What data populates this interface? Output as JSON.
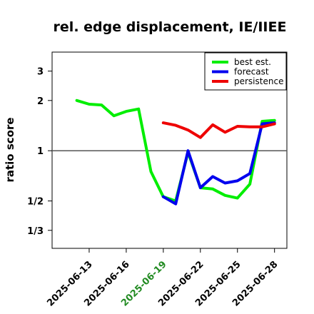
{
  "chart_data": {
    "type": "line",
    "title": "rel. edge displacement, IE/IIEE",
    "xlabel": "",
    "ylabel": "ratio score",
    "y_scale": "log",
    "y_ticks": [
      {
        "value": 3,
        "label": "3"
      },
      {
        "value": 2,
        "label": "2"
      },
      {
        "value": 1,
        "label": "1"
      },
      {
        "value": 0.5,
        "label": "1/2"
      },
      {
        "value": 0.3333,
        "label": "1/3"
      }
    ],
    "x_ticks": [
      {
        "date": "2025-06-13",
        "label": "2025-06-13",
        "color": "#000000"
      },
      {
        "date": "2025-06-16",
        "label": "2025-06-16",
        "color": "#000000"
      },
      {
        "date": "2025-06-19",
        "label": "2025-06-19",
        "color": "#228B22"
      },
      {
        "date": "2025-06-22",
        "label": "2025-06-22",
        "color": "#000000"
      },
      {
        "date": "2025-06-25",
        "label": "2025-06-25",
        "color": "#000000"
      },
      {
        "date": "2025-06-28",
        "label": "2025-06-28",
        "color": "#000000"
      }
    ],
    "xlim": [
      "2025-06-10",
      "2025-06-29"
    ],
    "ylim": [
      0.26,
      3.9
    ],
    "reference_line": 1,
    "legend_position": "top-right",
    "series": [
      {
        "name": "best est.",
        "color": "#00ee00",
        "points": [
          [
            "2025-06-12",
            2.0
          ],
          [
            "2025-06-13",
            1.9
          ],
          [
            "2025-06-14",
            1.88
          ],
          [
            "2025-06-15",
            1.62
          ],
          [
            "2025-06-16",
            1.72
          ],
          [
            "2025-06-17",
            1.78
          ],
          [
            "2025-06-18",
            0.75
          ],
          [
            "2025-06-19",
            0.53
          ],
          [
            "2025-06-20",
            0.5
          ],
          [
            "2025-06-21",
            0.98
          ],
          [
            "2025-06-22",
            0.6
          ],
          [
            "2025-06-23",
            0.59
          ],
          [
            "2025-06-24",
            0.54
          ],
          [
            "2025-06-25",
            0.52
          ],
          [
            "2025-06-26",
            0.63
          ],
          [
            "2025-06-27",
            1.5
          ],
          [
            "2025-06-28",
            1.52
          ]
        ]
      },
      {
        "name": "forecast",
        "color": "#0000ee",
        "points": [
          [
            "2025-06-19",
            0.53
          ],
          [
            "2025-06-20",
            0.48
          ],
          [
            "2025-06-21",
            1.0
          ],
          [
            "2025-06-22",
            0.6
          ],
          [
            "2025-06-23",
            0.7
          ],
          [
            "2025-06-24",
            0.64
          ],
          [
            "2025-06-25",
            0.66
          ],
          [
            "2025-06-26",
            0.73
          ],
          [
            "2025-06-27",
            1.45
          ],
          [
            "2025-06-28",
            1.47
          ]
        ]
      },
      {
        "name": "persistence",
        "color": "#ee0000",
        "points": [
          [
            "2025-06-19",
            1.47
          ],
          [
            "2025-06-20",
            1.42
          ],
          [
            "2025-06-21",
            1.33
          ],
          [
            "2025-06-22",
            1.2
          ],
          [
            "2025-06-23",
            1.43
          ],
          [
            "2025-06-24",
            1.29
          ],
          [
            "2025-06-25",
            1.4
          ],
          [
            "2025-06-26",
            1.39
          ],
          [
            "2025-06-27",
            1.39
          ],
          [
            "2025-06-28",
            1.45
          ]
        ]
      }
    ]
  }
}
